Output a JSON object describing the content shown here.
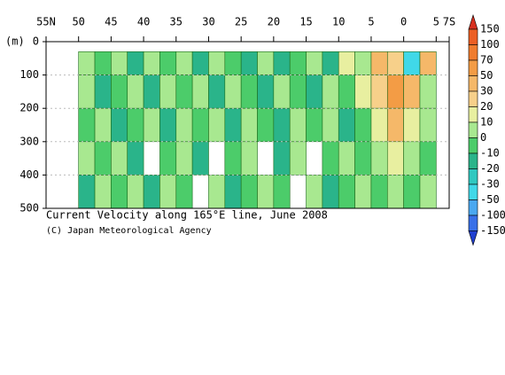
{
  "chart_data": {
    "type": "contour",
    "title": "Current Velocity along 165°E line, June 2008",
    "subtitle": "(C) Japan Meteorological Agency",
    "y_label": "(m)",
    "xlim": [
      55,
      -7
    ],
    "xticks": [
      {
        "value": 55,
        "label": "55N"
      },
      50,
      45,
      40,
      35,
      30,
      25,
      20,
      15,
      10,
      5,
      0,
      {
        "value": -5,
        "label": "5"
      },
      {
        "value": -7,
        "label": "7S"
      }
    ],
    "ylim": [
      0,
      500
    ],
    "yticks": [
      0,
      100,
      200,
      300,
      400,
      500
    ],
    "grid": true,
    "lat_bins": [
      50,
      47.5,
      45,
      42.5,
      40,
      37.5,
      35,
      32.5,
      30,
      27.5,
      25,
      22.5,
      20,
      17.5,
      15,
      12.5,
      10,
      7.5,
      5,
      2.5,
      0,
      -2.5,
      -5
    ],
    "depth_bins": [
      30,
      100,
      200,
      300,
      400,
      500
    ],
    "values": [
      [
        5,
        -5,
        5,
        -15,
        5,
        -5,
        5,
        -15,
        5,
        -5,
        -15,
        5,
        -15,
        -5,
        5,
        -15,
        10,
        5,
        40,
        25,
        -40,
        30
      ],
      [
        5,
        -15,
        -5,
        5,
        -15,
        5,
        -5,
        5,
        -15,
        5,
        -5,
        -15,
        5,
        -5,
        -15,
        5,
        -5,
        10,
        20,
        50,
        30,
        5
      ],
      [
        -5,
        5,
        -15,
        -5,
        5,
        -15,
        5,
        -5,
        5,
        -15,
        5,
        -5,
        -15,
        5,
        -5,
        5,
        -15,
        -5,
        10,
        30,
        15,
        5
      ],
      [
        5,
        -5,
        5,
        -15,
        null,
        -5,
        5,
        -15,
        null,
        -5,
        5,
        null,
        -15,
        5,
        null,
        -5,
        5,
        -5,
        5,
        10,
        5,
        -5
      ],
      [
        -15,
        5,
        -5,
        5,
        -15,
        5,
        -5,
        null,
        5,
        -15,
        -5,
        5,
        -5,
        null,
        5,
        -15,
        -5,
        5,
        -5,
        5,
        -5,
        5
      ]
    ],
    "levels": [
      150,
      100,
      70,
      50,
      30,
      20,
      10,
      0,
      -10,
      -20,
      -30,
      -50,
      -100,
      -150
    ],
    "colors": [
      "#d7301f",
      "#ec5f24",
      "#f07c2e",
      "#f39c45",
      "#f5b869",
      "#f7d08a",
      "#e8efa0",
      "#a8e890",
      "#4ccc6a",
      "#2ab48a",
      "#30c8c0",
      "#40d8e8",
      "#4aa8f0",
      "#3870e8",
      "#2040d0"
    ]
  }
}
